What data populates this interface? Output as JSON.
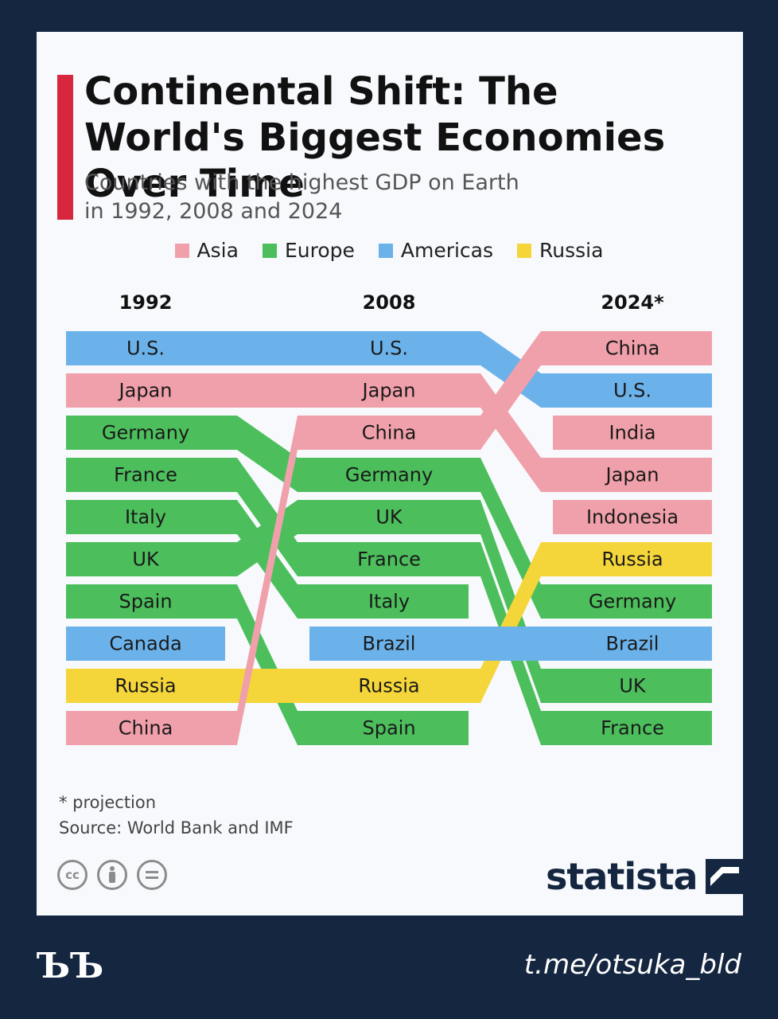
{
  "title": "Continental Shift: The World's Biggest Economies Over Time",
  "subtitle_line1": "Countries with the highest GDP on Earth",
  "subtitle_line2": "in 1992, 2008 and 2024",
  "footnote": "* projection",
  "source": "Source: World Bank and IMF",
  "brand": "statista",
  "channel_mark": "ЪЪ",
  "channel_link": "t.me/otsuka_bld",
  "license_icons": [
    "cc-icon",
    "attribution-icon",
    "no-derivatives-icon"
  ],
  "colors": {
    "accent": "#d7263d",
    "Asia": "#f0a0aa",
    "Europe": "#4cbf5c",
    "Americas": "#6cb2ea",
    "Russia": "#f5d63a"
  },
  "chart_data": {
    "type": "bump",
    "columns": [
      "1992",
      "2008",
      "2024*"
    ],
    "legend": [
      "Asia",
      "Europe",
      "Americas",
      "Russia"
    ],
    "rankings": {
      "1992": [
        "U.S.",
        "Japan",
        "Germany",
        "France",
        "Italy",
        "UK",
        "Spain",
        "Canada",
        "Russia",
        "China"
      ],
      "2008": [
        "U.S.",
        "Japan",
        "China",
        "Germany",
        "UK",
        "France",
        "Italy",
        "Brazil",
        "Russia",
        "Spain"
      ],
      "2024*": [
        "China",
        "U.S.",
        "India",
        "Japan",
        "Indonesia",
        "Russia",
        "Germany",
        "Brazil",
        "UK",
        "France"
      ]
    },
    "series": [
      {
        "name": "U.S.",
        "region": "Americas",
        "ranks": [
          1,
          1,
          2
        ]
      },
      {
        "name": "Japan",
        "region": "Asia",
        "ranks": [
          2,
          2,
          4
        ]
      },
      {
        "name": "Germany",
        "region": "Europe",
        "ranks": [
          3,
          4,
          7
        ]
      },
      {
        "name": "France",
        "region": "Europe",
        "ranks": [
          4,
          6,
          10
        ]
      },
      {
        "name": "Italy",
        "region": "Europe",
        "ranks": [
          5,
          7,
          null
        ]
      },
      {
        "name": "UK",
        "region": "Europe",
        "ranks": [
          6,
          5,
          9
        ]
      },
      {
        "name": "Spain",
        "region": "Europe",
        "ranks": [
          7,
          10,
          null
        ]
      },
      {
        "name": "Canada",
        "region": "Americas",
        "ranks": [
          8,
          null,
          null
        ]
      },
      {
        "name": "Russia",
        "region": "Russia",
        "ranks": [
          9,
          9,
          6
        ]
      },
      {
        "name": "China",
        "region": "Asia",
        "ranks": [
          10,
          3,
          1
        ]
      },
      {
        "name": "Brazil",
        "region": "Americas",
        "ranks": [
          null,
          8,
          8
        ]
      },
      {
        "name": "India",
        "region": "Asia",
        "ranks": [
          null,
          null,
          3
        ]
      },
      {
        "name": "Indonesia",
        "region": "Asia",
        "ranks": [
          null,
          null,
          5
        ]
      }
    ]
  }
}
